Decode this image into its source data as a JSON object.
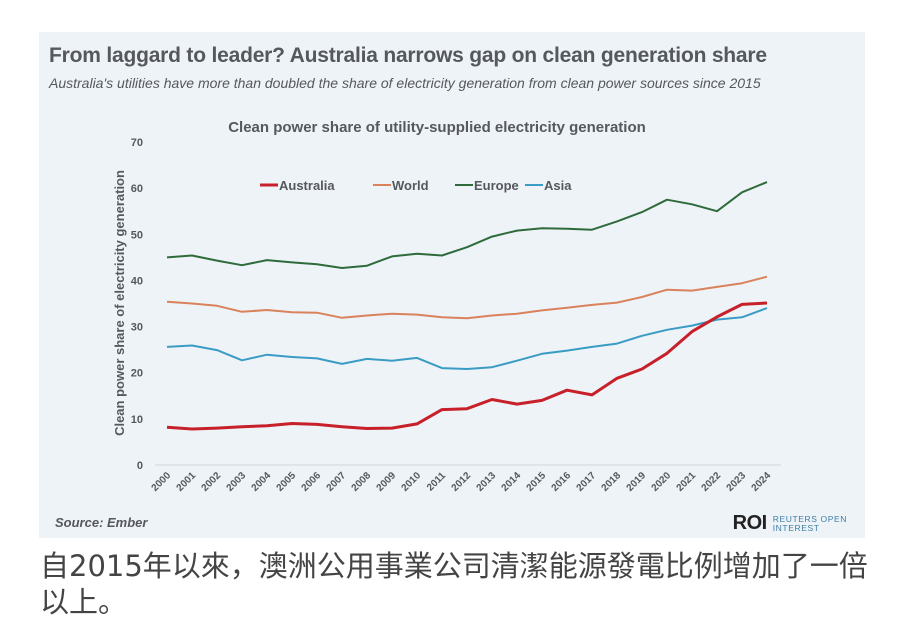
{
  "header": {
    "title": "From laggard to leader? Australia narrows gap on clean generation share",
    "subtitle": "Australia's utilities have more than doubled the share of electricity generation from clean power sources since 2015"
  },
  "footer": {
    "source": "Source:  Ember",
    "logo_mark": "ROI",
    "logo_line1": "REUTERS OPEN",
    "logo_line2": "INTEREST"
  },
  "caption": "自2015年以來，澳洲公用事業公司清潔能源發電比例增加了一倍以上。",
  "chart_data": {
    "type": "line",
    "title": "Clean power share of utility-supplied electricity generation",
    "xlabel": "",
    "ylabel": "Clean power share of electricity generation",
    "ylim": [
      0,
      70
    ],
    "yticks": [
      0,
      10,
      20,
      30,
      40,
      50,
      60,
      70
    ],
    "grid": false,
    "legend_position": "top-left",
    "x": [
      "2000",
      "2001",
      "2002",
      "2003",
      "2004",
      "2005",
      "2006",
      "2007",
      "2008",
      "2009",
      "2010",
      "2011",
      "2012",
      "2013",
      "2014",
      "2015",
      "2016",
      "2017",
      "2018",
      "2019",
      "2020",
      "2021",
      "2022",
      "2023",
      "2024"
    ],
    "series": [
      {
        "name": "Australia",
        "color": "#c8202a",
        "values": [
          8.2,
          7.8,
          8.0,
          8.3,
          8.5,
          9.0,
          8.8,
          8.3,
          7.9,
          8.0,
          8.9,
          12.0,
          12.2,
          14.2,
          13.2,
          14.0,
          16.2,
          15.2,
          18.8,
          20.8,
          24.2,
          28.9,
          32.1,
          34.8,
          35.1
        ]
      },
      {
        "name": "World",
        "color": "#d9825b",
        "values": [
          35.4,
          35.0,
          34.5,
          33.2,
          33.6,
          33.1,
          33.0,
          31.9,
          32.4,
          32.8,
          32.6,
          32.0,
          31.8,
          32.4,
          32.8,
          33.5,
          34.1,
          34.7,
          35.2,
          36.4,
          38.0,
          37.8,
          38.6,
          39.4,
          40.8
        ]
      },
      {
        "name": "Europe",
        "color": "#2f6b3a",
        "values": [
          45.0,
          45.4,
          44.3,
          43.3,
          44.4,
          43.9,
          43.5,
          42.7,
          43.2,
          45.2,
          45.8,
          45.4,
          47.2,
          49.5,
          50.8,
          51.3,
          51.2,
          51.0,
          52.8,
          54.8,
          57.5,
          56.5,
          55.0,
          59.1,
          61.3
        ]
      },
      {
        "name": "Asia",
        "color": "#3a9cc4",
        "values": [
          25.6,
          25.9,
          24.9,
          22.7,
          23.9,
          23.4,
          23.1,
          21.9,
          23.0,
          22.6,
          23.2,
          21.0,
          20.8,
          21.2,
          22.6,
          24.1,
          24.8,
          25.6,
          26.3,
          28.0,
          29.3,
          30.2,
          31.5,
          32.0,
          34.0
        ]
      }
    ]
  }
}
